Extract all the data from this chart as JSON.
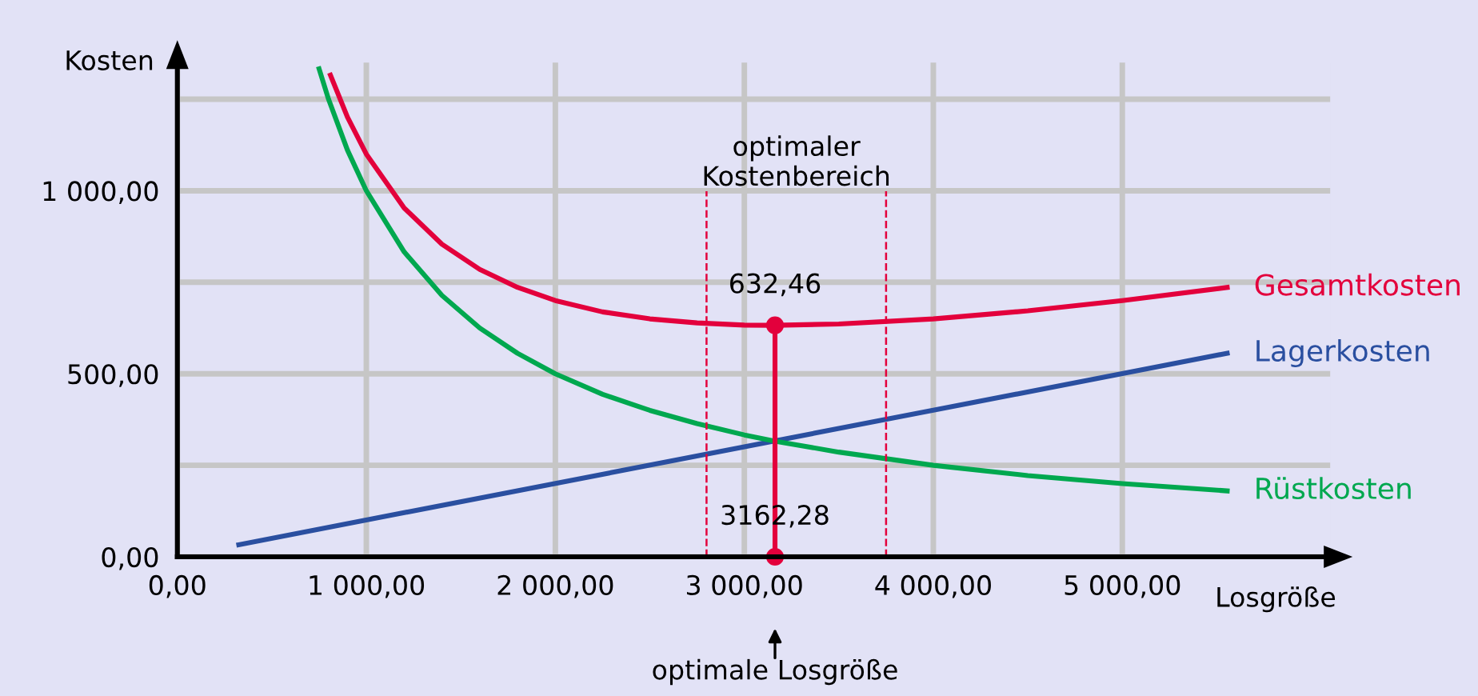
{
  "chart_data": {
    "type": "line",
    "xlabel": "Losgröße",
    "ylabel": "Kosten",
    "xlim": [
      0,
      6100
    ],
    "ylim": [
      0,
      1350
    ],
    "xticks": [
      {
        "value": 0,
        "label": "0,00"
      },
      {
        "value": 1000,
        "label": "1 000,00"
      },
      {
        "value": 2000,
        "label": "2 000,00"
      },
      {
        "value": 3000,
        "label": "3 000,00"
      },
      {
        "value": 4000,
        "label": "4 000,00"
      },
      {
        "value": 5000,
        "label": "5 000,00"
      }
    ],
    "yticks": [
      {
        "value": 0,
        "label": "0,00"
      },
      {
        "value": 250,
        "label": null
      },
      {
        "value": 500,
        "label": "500,00"
      },
      {
        "value": 750,
        "label": null
      },
      {
        "value": 1000,
        "label": "1 000,00"
      },
      {
        "value": 1250,
        "label": null
      }
    ],
    "grid": true,
    "marker": "none",
    "line_style": "solid",
    "series": [
      {
        "name": "Gesamtkosten",
        "color": "#e3003c",
        "x": [
          810,
          900,
          1000,
          1200,
          1400,
          1600,
          1800,
          2000,
          2250,
          2500,
          2750,
          3000,
          3162.28,
          3500,
          4000,
          4500,
          5000,
          5555
        ],
        "values": [
          1316,
          1201,
          1100,
          953,
          854,
          785,
          736,
          700,
          669,
          650,
          639,
          633,
          632.46,
          636,
          650,
          672,
          700,
          736
        ]
      },
      {
        "name": "Lagerkosten",
        "color": "#2a4fa0",
        "x": [
          325,
          5555
        ],
        "values": [
          33,
          556
        ]
      },
      {
        "name": "Rüstkosten",
        "color": "#00a84f",
        "x": [
          750,
          800,
          900,
          1000,
          1200,
          1400,
          1600,
          1800,
          2000,
          2250,
          2500,
          2750,
          3000,
          3162.28,
          3500,
          4000,
          4500,
          5000,
          5555
        ],
        "values": [
          1333,
          1250,
          1111,
          1000,
          833,
          714,
          625,
          556,
          500,
          444,
          400,
          364,
          333,
          316,
          286,
          250,
          222,
          200,
          180
        ]
      },
      {
        "color": "#e3003c",
        "marker": "circle",
        "x": [
          3162.28,
          3162.28
        ],
        "values": [
          0,
          632.46
        ]
      }
    ],
    "ref_lines": [
      {
        "axis": "x",
        "value": 2800,
        "color": "#e3003c",
        "line_style": "dashed"
      },
      {
        "axis": "x",
        "value": 3750,
        "color": "#e3003c",
        "line_style": "dashed"
      }
    ],
    "annotations": [
      {
        "text": "632,46",
        "x": 3162.28,
        "y": 632.46
      },
      {
        "text": "3162,28",
        "x": 3162.28,
        "y": 0
      },
      "optimaler\nKostenbereich",
      "optimale Losgröße"
    ]
  }
}
